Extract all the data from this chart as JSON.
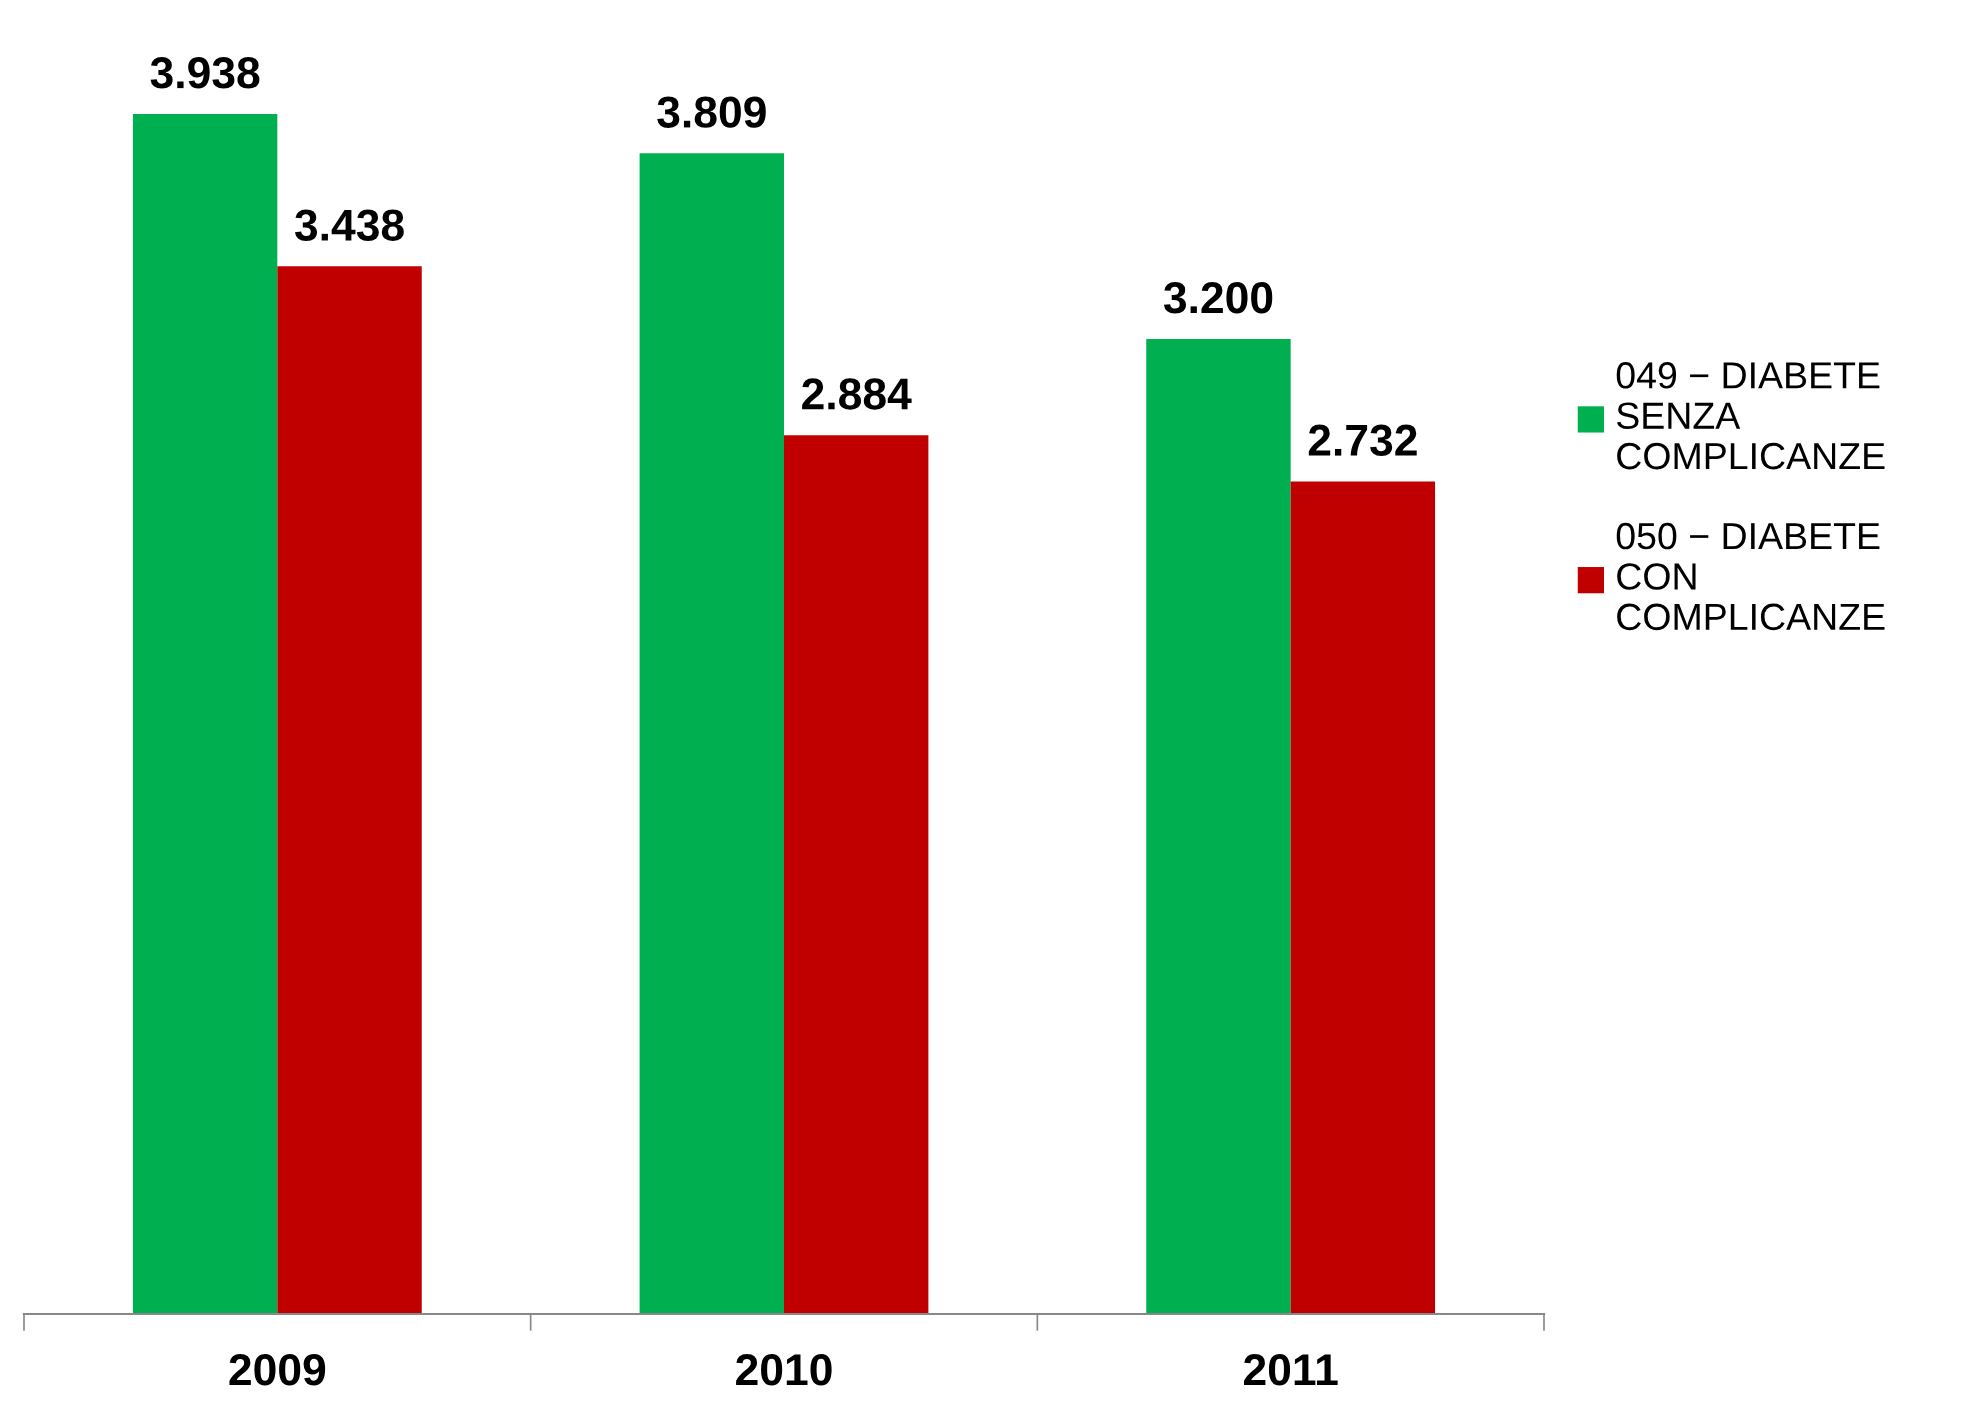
{
  "chart_data": {
    "type": "bar",
    "categories": [
      "2009",
      "2010",
      "2011"
    ],
    "series": [
      {
        "name": "049 − DIABETE SENZA COMPLICANZE",
        "color": "#00b050",
        "values": [
          3938,
          3809,
          3200
        ],
        "value_labels": [
          "3.938",
          "3.809",
          "3.200"
        ]
      },
      {
        "name": "050 − DIABETE CON COMPLICANZE",
        "color": "#c00000",
        "values": [
          3438,
          2884,
          2732
        ],
        "value_labels": [
          "3.438",
          "2.884",
          "2.732"
        ]
      }
    ],
    "legend": "right",
    "grid": false,
    "tick_labels": "x"
  }
}
